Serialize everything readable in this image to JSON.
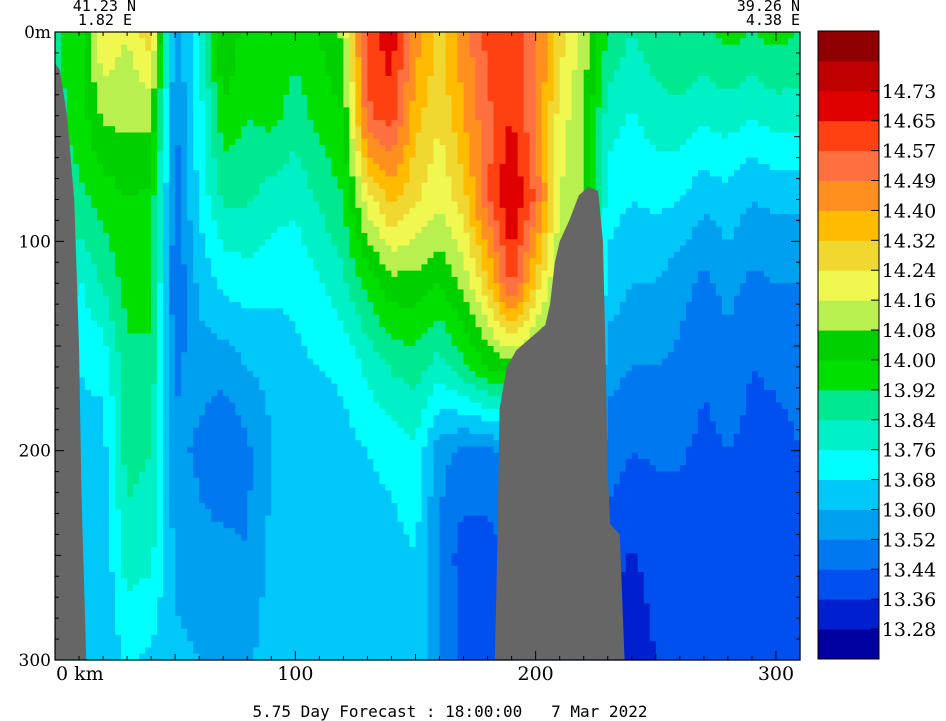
{
  "chart_data": {
    "type": "heatmap",
    "title": "5.75 Day Forecast : 18:00:00   7 Mar 2022",
    "start_point": {
      "lat": "41.23 N",
      "lon": "1.82 E"
    },
    "end_point": {
      "lat": "39.26 N",
      "lon": "4.38 E"
    },
    "x_axis": {
      "unit": "km",
      "range": [
        0,
        310
      ],
      "ticks": [
        0,
        100,
        200,
        300
      ],
      "tick_labels": [
        "0  km",
        "100",
        "200",
        "300"
      ]
    },
    "y_axis": {
      "unit": "m",
      "range": [
        0,
        300
      ],
      "inverted": true,
      "ticks": [
        0,
        100,
        200,
        300
      ],
      "tick_labels": [
        "0m",
        "100",
        "200",
        "300"
      ]
    },
    "colorbar": {
      "levels": [
        13.28,
        13.36,
        13.44,
        13.52,
        13.6,
        13.68,
        13.76,
        13.84,
        13.92,
        14.0,
        14.08,
        14.16,
        14.24,
        14.32,
        14.4,
        14.49,
        14.57,
        14.65,
        14.73
      ],
      "labels": [
        "13.28",
        "13.36",
        "13.44",
        "13.52",
        "13.60",
        "13.68",
        "13.76",
        "13.84",
        "13.92",
        "14.00",
        "14.08",
        "14.16",
        "14.24",
        "14.32",
        "14.40",
        "14.49",
        "14.57",
        "14.65",
        "14.73"
      ],
      "colors": [
        "#0000a0",
        "#0020d0",
        "#0050f0",
        "#0078f0",
        "#00a0f0",
        "#00c8f8",
        "#00ffff",
        "#00f0c8",
        "#00e890",
        "#00e000",
        "#00d000",
        "#b8f050",
        "#f0f850",
        "#f0d830",
        "#ffbb00",
        "#ff9020",
        "#ff7040",
        "#ff4010",
        "#e00000",
        "#c00000",
        "#900000"
      ]
    },
    "seafloor_color": "#666666",
    "columns": [
      {
        "km": 0,
        "temps": [
          13.9,
          13.9,
          13.9,
          13.9,
          13.9,
          13.9,
          13.9,
          13.9
        ]
      },
      {
        "km": 10,
        "temps": [
          13.96,
          13.95,
          13.9,
          13.75,
          13.68,
          13.66,
          13.62,
          13.6
        ]
      },
      {
        "km": 20,
        "temps": [
          14.24,
          14.1,
          13.95,
          13.85,
          13.7,
          13.65,
          13.62,
          13.6
        ]
      },
      {
        "km": 30,
        "temps": [
          14.16,
          14.1,
          14.0,
          13.95,
          13.9,
          13.88,
          13.8,
          13.7
        ]
      },
      {
        "km": 40,
        "temps": [
          14.3,
          14.1,
          13.98,
          13.95,
          13.9,
          13.84,
          13.78,
          13.66
        ]
      },
      {
        "km": 50,
        "temps": [
          13.55,
          13.5,
          13.48,
          13.44,
          13.5,
          13.55,
          13.58,
          13.62
        ]
      },
      {
        "km": 60,
        "temps": [
          13.75,
          13.72,
          13.7,
          13.62,
          13.56,
          13.5,
          13.55,
          13.6
        ]
      },
      {
        "km": 70,
        "temps": [
          14.1,
          13.98,
          13.85,
          13.7,
          13.55,
          13.44,
          13.55,
          13.58
        ]
      },
      {
        "km": 80,
        "temps": [
          13.95,
          13.92,
          13.85,
          13.72,
          13.6,
          13.5,
          13.52,
          13.58
        ]
      },
      {
        "km": 90,
        "temps": [
          14.0,
          13.95,
          13.8,
          13.7,
          13.62,
          13.6,
          13.62,
          13.65
        ]
      },
      {
        "km": 100,
        "temps": [
          13.95,
          13.88,
          13.78,
          13.7,
          13.66,
          13.62,
          13.6,
          13.62
        ]
      },
      {
        "km": 110,
        "temps": [
          14.0,
          13.95,
          13.85,
          13.75,
          13.68,
          13.62,
          13.6,
          13.62
        ]
      },
      {
        "km": 120,
        "temps": [
          14.1,
          14.0,
          13.92,
          13.82,
          13.7,
          13.65,
          13.62,
          13.65
        ]
      },
      {
        "km": 130,
        "temps": [
          14.62,
          14.55,
          14.2,
          13.95,
          13.78,
          13.68,
          13.65,
          13.66
        ]
      },
      {
        "km": 140,
        "temps": [
          14.7,
          14.62,
          14.35,
          14.05,
          13.85,
          13.7,
          13.65,
          13.68
        ]
      },
      {
        "km": 150,
        "temps": [
          14.45,
          14.35,
          14.25,
          14.05,
          13.88,
          13.75,
          13.68,
          13.66
        ]
      },
      {
        "km": 160,
        "temps": [
          14.3,
          14.25,
          14.18,
          14.0,
          13.8,
          13.55,
          13.5,
          13.52
        ]
      },
      {
        "km": 170,
        "temps": [
          14.45,
          14.4,
          14.28,
          14.1,
          13.9,
          13.5,
          13.4,
          13.42
        ]
      },
      {
        "km": 180,
        "temps": [
          14.6,
          14.55,
          14.55,
          14.3,
          14.0,
          13.5,
          13.4,
          13.4
        ]
      },
      {
        "km": 190,
        "temps": [
          14.62,
          14.65,
          14.75,
          14.6,
          14.05,
          13.55,
          13.45,
          13.45
        ]
      },
      {
        "km": 200,
        "temps": [
          14.5,
          14.5,
          14.55,
          14.3,
          14.0,
          13.6,
          13.5,
          13.5
        ]
      },
      {
        "km": 210,
        "temps": [
          14.28,
          14.2,
          14.16,
          14.05,
          13.95,
          13.7,
          13.55,
          13.52
        ]
      },
      {
        "km": 220,
        "temps": [
          14.12,
          14.1,
          14.08,
          14.0,
          13.9,
          13.7,
          13.55,
          13.5
        ]
      },
      {
        "km": 230,
        "temps": [
          13.92,
          13.8,
          13.72,
          13.65,
          13.55,
          13.48,
          13.4,
          13.32
        ]
      },
      {
        "km": 240,
        "temps": [
          13.84,
          13.75,
          13.68,
          13.6,
          13.52,
          13.44,
          13.35,
          13.3
        ]
      },
      {
        "km": 250,
        "temps": [
          13.9,
          13.8,
          13.7,
          13.6,
          13.52,
          13.45,
          13.4,
          13.36
        ]
      },
      {
        "km": 260,
        "temps": [
          13.92,
          13.82,
          13.68,
          13.55,
          13.5,
          13.45,
          13.4,
          13.38
        ]
      },
      {
        "km": 270,
        "temps": [
          13.9,
          13.78,
          13.62,
          13.5,
          13.45,
          13.42,
          13.4,
          13.4
        ]
      },
      {
        "km": 280,
        "temps": [
          13.95,
          13.8,
          13.65,
          13.55,
          13.48,
          13.44,
          13.42,
          13.4
        ]
      },
      {
        "km": 290,
        "temps": [
          13.92,
          13.76,
          13.6,
          13.5,
          13.44,
          13.42,
          13.4,
          13.4
        ]
      },
      {
        "km": 300,
        "temps": [
          13.95,
          13.8,
          13.62,
          13.52,
          13.45,
          13.42,
          13.4,
          13.42
        ]
      },
      {
        "km": 310,
        "temps": [
          13.92,
          13.8,
          13.62,
          13.52,
          13.46,
          13.44,
          13.42,
          13.44
        ]
      }
    ],
    "depth_levels_m": [
      0,
      40,
      80,
      120,
      160,
      200,
      250,
      300
    ],
    "bathymetry": {
      "left": [
        [
          0,
          15
        ],
        [
          2,
          18
        ],
        [
          5,
          40
        ],
        [
          8,
          80
        ],
        [
          10,
          150
        ],
        [
          11,
          220
        ],
        [
          12,
          260
        ],
        [
          13,
          300
        ]
      ],
      "middle": [
        [
          183,
          300
        ],
        [
          184,
          250
        ],
        [
          185,
          180
        ],
        [
          188,
          160
        ],
        [
          192,
          152
        ],
        [
          196,
          148
        ],
        [
          200,
          144
        ],
        [
          204,
          140
        ],
        [
          206,
          130
        ],
        [
          208,
          110
        ],
        [
          210,
          100
        ],
        [
          214,
          90
        ],
        [
          218,
          78
        ],
        [
          222,
          74
        ],
        [
          226,
          76
        ],
        [
          228,
          100
        ],
        [
          229,
          150
        ],
        [
          230,
          210
        ],
        [
          231,
          235
        ],
        [
          235,
          240
        ],
        [
          236,
          270
        ],
        [
          237,
          300
        ]
      ]
    }
  }
}
